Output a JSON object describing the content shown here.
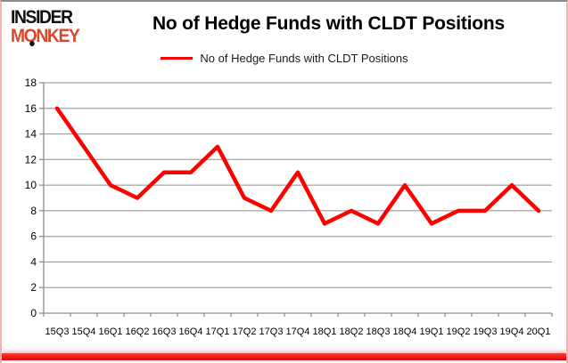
{
  "logo": {
    "line1": "INSIDER",
    "line2": "MONKEY"
  },
  "header": {
    "title": "No of Hedge Funds with CLDT Positions"
  },
  "legend": {
    "label": "No of Hedge Funds with CLDT Positions",
    "line_color": "#ff0000"
  },
  "chart_data": {
    "type": "line",
    "title": "No of Hedge Funds with CLDT Positions",
    "categories": [
      "15Q3",
      "15Q4",
      "16Q1",
      "16Q2",
      "16Q3",
      "16Q4",
      "17Q1",
      "17Q2",
      "17Q3",
      "17Q4",
      "18Q1",
      "18Q2",
      "18Q3",
      "18Q4",
      "19Q1",
      "19Q2",
      "19Q3",
      "19Q4",
      "20Q1"
    ],
    "series": [
      {
        "name": "No of Hedge Funds with CLDT Positions",
        "color": "#ff0000",
        "values": [
          16,
          13,
          10,
          9,
          11,
          11,
          13,
          9,
          8,
          11,
          7,
          8,
          7,
          10,
          7,
          8,
          8,
          10,
          8
        ]
      }
    ],
    "xlabel": "",
    "ylabel": "",
    "ylim": [
      0,
      18
    ],
    "ytick_step": 2,
    "grid": true,
    "legend_position": "top"
  },
  "colors": {
    "series_red": "#ff0000",
    "logo_red": "#d9472f",
    "border_pink": "#f3b3b0",
    "border_top_gray": "#8a8a8a",
    "bottom_bar_red": "#e60000",
    "gridline_gray": "#8e8e8e"
  }
}
